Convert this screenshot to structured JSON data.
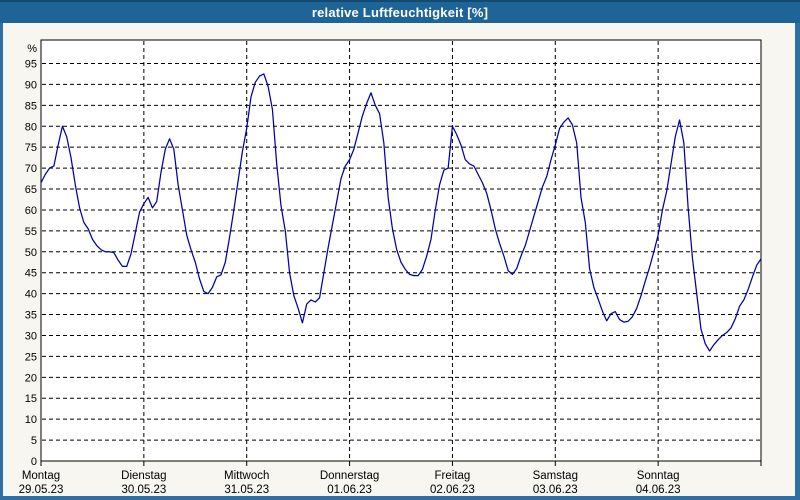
{
  "window": {
    "title": "relative Luftfeuchtigkeit [%]"
  },
  "colors": {
    "titlebar_bg": "#1e6496",
    "titlebar_top_edge": "#134a70",
    "frame_border": "#2f6fa5",
    "content_bg": "#f7f6f1",
    "plot_bg": "#ffffff",
    "plot_border": "#000000",
    "grid": "#000000",
    "line": "#0000aa",
    "label_text": "#000000",
    "title_text": "#ffffff"
  },
  "chart_data": {
    "type": "line",
    "title": "relative Luftfeuchtigkeit [%]",
    "ylabel": "%",
    "xlabel": "",
    "ylim": [
      0,
      100
    ],
    "y_ticks": [
      0,
      5,
      10,
      15,
      20,
      25,
      30,
      35,
      40,
      45,
      50,
      55,
      60,
      65,
      70,
      75,
      80,
      85,
      90,
      95
    ],
    "y_unit_label": "%",
    "grid": "dashed",
    "legend_position": "none",
    "x_days": [
      {
        "name": "Montag",
        "date": "29.05.23"
      },
      {
        "name": "Dienstag",
        "date": "30.05.23"
      },
      {
        "name": "Mittwoch",
        "date": "31.05.23"
      },
      {
        "name": "Donnerstag",
        "date": "01.06.23"
      },
      {
        "name": "Freitag",
        "date": "02.06.23"
      },
      {
        "name": "Samstag",
        "date": "03.06.23"
      },
      {
        "name": "Sonntag",
        "date": "04.06.23"
      }
    ],
    "sampling": "hourly, 24 values per day plus final end-of-week value",
    "series": [
      {
        "name": "relative Luftfeuchtigkeit",
        "unit": "%",
        "values": [
          66.5,
          68.5,
          70,
          70.5,
          75.5,
          80,
          77.5,
          72.5,
          66,
          60.5,
          57,
          55.5,
          53,
          51.5,
          50.5,
          50,
          50,
          49.8,
          48,
          46.5,
          46.5,
          49.5,
          54.5,
          59.5,
          61.5,
          63,
          60.5,
          62,
          69,
          74.5,
          77,
          74.5,
          66,
          60,
          54,
          50.5,
          47.5,
          43.5,
          40.5,
          40,
          41.5,
          44,
          44.5,
          47.5,
          53.5,
          60,
          67,
          74,
          79.5,
          87,
          90.5,
          92,
          92.5,
          89.5,
          84,
          71,
          61,
          55,
          45,
          39.5,
          36.5,
          33,
          37.5,
          38.5,
          38,
          39,
          45,
          51,
          56.5,
          62,
          67.5,
          70.5,
          72,
          74.5,
          78.5,
          82.5,
          85.5,
          88,
          85,
          83,
          76,
          63,
          55.5,
          50.5,
          47.5,
          45.8,
          44.6,
          44.3,
          44.3,
          45.8,
          49,
          53,
          60,
          66,
          69.5,
          70,
          80,
          78,
          75.5,
          72,
          71,
          70.5,
          68.5,
          66.5,
          64,
          60,
          55.5,
          52,
          49,
          45.5,
          44.6,
          46,
          49,
          51.5,
          55,
          58.5,
          62,
          65.5,
          68,
          72,
          75.5,
          79.5,
          81,
          82,
          80.3,
          76,
          63,
          57,
          46,
          41.5,
          38.7,
          35.8,
          33.5,
          35.2,
          35.7,
          33.8,
          33.2,
          33.4,
          34.5,
          36.5,
          39.5,
          43,
          46.3,
          50,
          54,
          60,
          64.5,
          71,
          77.5,
          81.5,
          76,
          60.5,
          48.5,
          40,
          31.5,
          28,
          26.3,
          27.8,
          29,
          30,
          30.7,
          31.8,
          34,
          37,
          38.5,
          41,
          44,
          46.8,
          48.3
        ]
      }
    ]
  }
}
